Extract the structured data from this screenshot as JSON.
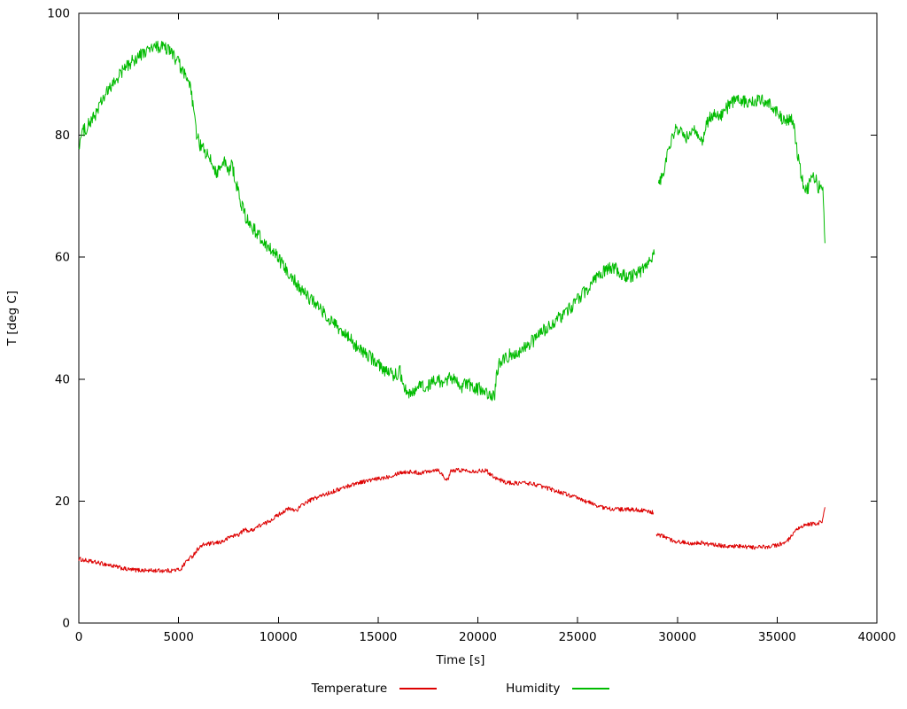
{
  "chart_data": {
    "type": "line",
    "title": "",
    "xlabel": "Time [s]",
    "ylabel": "T [deg C]",
    "xlim": [
      0,
      40000
    ],
    "ylim": [
      0,
      100
    ],
    "xticks": [
      0,
      5000,
      10000,
      15000,
      20000,
      25000,
      30000,
      35000,
      40000
    ],
    "yticks": [
      0,
      20,
      40,
      60,
      80,
      100
    ],
    "grid": false,
    "legend_position": "below",
    "axis_color": "#000000",
    "background": "#ffffff",
    "series": [
      {
        "name": "Temperature",
        "color": "#dd0000",
        "noise": 0.35,
        "segments": [
          [
            [
              0,
              10.5
            ],
            [
              400,
              10.2
            ],
            [
              900,
              9.9
            ],
            [
              1400,
              9.6
            ],
            [
              1900,
              9.2
            ],
            [
              2400,
              8.8
            ],
            [
              2800,
              8.7
            ],
            [
              3600,
              8.6
            ],
            [
              4600,
              8.6
            ],
            [
              5100,
              8.8
            ],
            [
              5400,
              10.2
            ],
            [
              5700,
              11.0
            ],
            [
              6000,
              12.3
            ],
            [
              6300,
              12.9
            ],
            [
              6900,
              13.1
            ],
            [
              7300,
              13.5
            ],
            [
              7600,
              14.2
            ],
            [
              8000,
              14.5
            ],
            [
              8300,
              15.3
            ],
            [
              8600,
              15.1
            ],
            [
              9000,
              15.9
            ],
            [
              9400,
              16.4
            ],
            [
              9800,
              17.3
            ],
            [
              10200,
              18.2
            ],
            [
              10500,
              18.7
            ],
            [
              10900,
              18.5
            ],
            [
              11300,
              19.6
            ],
            [
              11700,
              20.3
            ],
            [
              12100,
              20.8
            ],
            [
              12600,
              21.4
            ],
            [
              13100,
              22.0
            ],
            [
              13600,
              22.6
            ],
            [
              14100,
              23.1
            ],
            [
              14600,
              23.4
            ],
            [
              15100,
              23.7
            ],
            [
              15600,
              24.1
            ],
            [
              16100,
              24.7
            ],
            [
              16600,
              24.8
            ],
            [
              17100,
              24.6
            ],
            [
              17600,
              25.0
            ],
            [
              18000,
              25.2
            ],
            [
              18350,
              23.8
            ],
            [
              18500,
              23.4
            ],
            [
              18650,
              24.9
            ],
            [
              19000,
              25.1
            ],
            [
              19500,
              25.0
            ],
            [
              20000,
              24.9
            ],
            [
              20350,
              25.1
            ],
            [
              20700,
              24.3
            ],
            [
              21000,
              23.6
            ],
            [
              21400,
              23.1
            ],
            [
              21800,
              22.9
            ],
            [
              22300,
              23.0
            ],
            [
              22800,
              22.8
            ],
            [
              23300,
              22.3
            ],
            [
              23800,
              21.8
            ],
            [
              24300,
              21.3
            ],
            [
              24800,
              20.7
            ],
            [
              25300,
              20.1
            ],
            [
              25800,
              19.5
            ],
            [
              26300,
              18.9
            ],
            [
              26800,
              18.7
            ],
            [
              27400,
              18.6
            ],
            [
              28000,
              18.6
            ],
            [
              28800,
              18.1
            ]
          ],
          [
            [
              28950,
              14.6
            ],
            [
              29300,
              14.2
            ],
            [
              29700,
              13.6
            ],
            [
              30100,
              13.3
            ],
            [
              30600,
              13.1
            ],
            [
              31100,
              13.2
            ],
            [
              31600,
              12.9
            ],
            [
              32100,
              12.7
            ],
            [
              32700,
              12.6
            ],
            [
              33300,
              12.5
            ],
            [
              33900,
              12.4
            ],
            [
              34500,
              12.5
            ],
            [
              35000,
              12.8
            ],
            [
              35400,
              13.1
            ],
            [
              35700,
              14.1
            ],
            [
              36000,
              15.3
            ],
            [
              36300,
              15.9
            ],
            [
              36600,
              16.2
            ],
            [
              37000,
              16.3
            ],
            [
              37250,
              16.6
            ],
            [
              37400,
              19.0
            ]
          ]
        ]
      },
      {
        "name": "Humidity",
        "color": "#00bb00",
        "noise": 1.1,
        "segments": [
          [
            [
              0,
              78.3
            ],
            [
              150,
              80.3
            ],
            [
              400,
              81.4
            ],
            [
              700,
              82.6
            ],
            [
              1000,
              84.6
            ],
            [
              1300,
              86.4
            ],
            [
              1700,
              88.3
            ],
            [
              2100,
              90.2
            ],
            [
              2500,
              91.6
            ],
            [
              2900,
              92.7
            ],
            [
              3300,
              93.6
            ],
            [
              3700,
              94.3
            ],
            [
              4100,
              94.5
            ],
            [
              4400,
              94.2
            ],
            [
              4700,
              93.4
            ],
            [
              5000,
              91.8
            ],
            [
              5300,
              89.8
            ],
            [
              5600,
              87.6
            ],
            [
              5750,
              84.5
            ],
            [
              5900,
              79.8
            ],
            [
              6100,
              78.3
            ],
            [
              6300,
              77.4
            ],
            [
              6600,
              75.8
            ],
            [
              6900,
              74.0
            ],
            [
              7100,
              74.6
            ],
            [
              7300,
              75.6
            ],
            [
              7500,
              73.9
            ],
            [
              7650,
              75.4
            ],
            [
              7850,
              72.8
            ],
            [
              8050,
              69.8
            ],
            [
              8350,
              66.6
            ],
            [
              8650,
              65.1
            ],
            [
              9050,
              63.4
            ],
            [
              9450,
              61.9
            ],
            [
              9850,
              60.4
            ],
            [
              10250,
              58.5
            ],
            [
              10650,
              57.0
            ],
            [
              11050,
              55.0
            ],
            [
              11450,
              53.6
            ],
            [
              11850,
              52.5
            ],
            [
              12250,
              51.0
            ],
            [
              12650,
              49.4
            ],
            [
              13050,
              48.1
            ],
            [
              13450,
              47.0
            ],
            [
              13850,
              45.6
            ],
            [
              14250,
              44.5
            ],
            [
              14650,
              43.4
            ],
            [
              15050,
              42.4
            ],
            [
              15450,
              41.2
            ],
            [
              15850,
              40.6
            ],
            [
              16100,
              41.3
            ],
            [
              16350,
              38.6
            ],
            [
              16600,
              37.6
            ],
            [
              16850,
              38.2
            ],
            [
              17100,
              39.0
            ],
            [
              17400,
              38.4
            ],
            [
              17700,
              39.6
            ],
            [
              18000,
              40.1
            ],
            [
              18300,
              39.0
            ],
            [
              18600,
              40.4
            ],
            [
              18900,
              39.4
            ],
            [
              19200,
              38.6
            ],
            [
              19500,
              39.6
            ],
            [
              19800,
              38.1
            ],
            [
              20100,
              38.6
            ],
            [
              20400,
              38.0
            ],
            [
              20650,
              36.9
            ],
            [
              20850,
              37.6
            ],
            [
              20950,
              41.0
            ],
            [
              21100,
              42.7
            ],
            [
              21400,
              43.6
            ],
            [
              21700,
              44.1
            ],
            [
              22100,
              44.6
            ],
            [
              22500,
              45.6
            ],
            [
              22900,
              46.6
            ],
            [
              23300,
              48.0
            ],
            [
              23700,
              49.1
            ],
            [
              24100,
              50.1
            ],
            [
              24500,
              51.1
            ],
            [
              24900,
              52.6
            ],
            [
              25300,
              54.1
            ],
            [
              25700,
              55.7
            ],
            [
              26000,
              57.1
            ],
            [
              26300,
              57.6
            ],
            [
              26600,
              58.1
            ],
            [
              26900,
              58.0
            ],
            [
              27200,
              57.4
            ],
            [
              27500,
              56.6
            ],
            [
              27800,
              57.1
            ],
            [
              28100,
              57.6
            ],
            [
              28400,
              58.6
            ],
            [
              28700,
              59.6
            ],
            [
              28850,
              60.4
            ]
          ],
          [
            [
              29050,
              71.2
            ],
            [
              29250,
              73.6
            ],
            [
              29450,
              76.1
            ],
            [
              29650,
              78.6
            ],
            [
              29850,
              80.6
            ],
            [
              30050,
              81.1
            ],
            [
              30250,
              80.4
            ],
            [
              30450,
              79.6
            ],
            [
              30650,
              80.6
            ],
            [
              30850,
              81.1
            ],
            [
              31050,
              79.6
            ],
            [
              31250,
              78.9
            ],
            [
              31500,
              82.1
            ],
            [
              31800,
              83.6
            ],
            [
              32100,
              83.1
            ],
            [
              32400,
              84.1
            ],
            [
              32700,
              85.4
            ],
            [
              33000,
              86.0
            ],
            [
              33300,
              85.6
            ],
            [
              33600,
              85.1
            ],
            [
              33900,
              85.6
            ],
            [
              34200,
              86.0
            ],
            [
              34500,
              85.6
            ],
            [
              34800,
              84.6
            ],
            [
              35100,
              83.1
            ],
            [
              35500,
              82.4
            ],
            [
              35800,
              82.6
            ],
            [
              35950,
              78.5
            ],
            [
              36100,
              75.4
            ],
            [
              36300,
              72.1
            ],
            [
              36500,
              71.1
            ],
            [
              36700,
              72.6
            ],
            [
              36900,
              73.4
            ],
            [
              37050,
              71.4
            ],
            [
              37200,
              72.1
            ],
            [
              37320,
              70.0
            ],
            [
              37400,
              62.3
            ]
          ]
        ]
      }
    ]
  }
}
